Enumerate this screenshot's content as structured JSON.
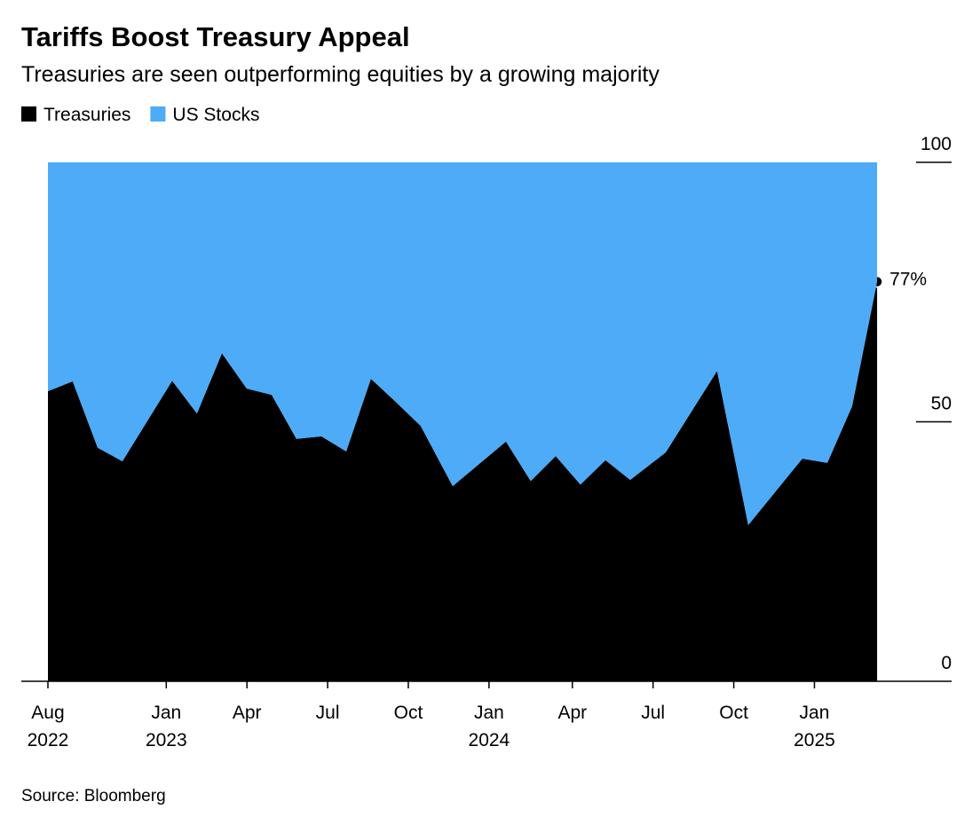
{
  "chart_data": {
    "type": "stacked_area",
    "title": "Tariffs Boost Treasury Appeal",
    "subtitle": "Treasuries are seen outperforming equities by a growing majority",
    "source": "Source: Bloomberg",
    "x": [
      0,
      0.92,
      1.85,
      2.77,
      4.62,
      5.54,
      6.47,
      7.39,
      8.32,
      9.24,
      10.17,
      11.09,
      12.01,
      12.94,
      13.86,
      15.05,
      17.03,
      17.95,
      18.88,
      19.8,
      20.73,
      21.65,
      22.97,
      24.88,
      26.04,
      28.05,
      28.98,
      29.9,
      30.83
    ],
    "series": [
      {
        "name": "Treasuries",
        "color": "#000000",
        "values": [
          55.9,
          57.8,
          45.0,
          42.4,
          57.9,
          51.6,
          63.2,
          56.4,
          55.2,
          46.7,
          47.2,
          44.3,
          58.3,
          53.8,
          49.2,
          37.6,
          46.2,
          38.6,
          43.4,
          37.9,
          42.6,
          38.8,
          44.1,
          59.8,
          30.1,
          42.9,
          42.1,
          53.0,
          77
        ],
        "value_labels": [
          null,
          null,
          null,
          null,
          null,
          null,
          null,
          null,
          null,
          null,
          null,
          null,
          null,
          null,
          null,
          null,
          null,
          null,
          null,
          null,
          null,
          null,
          null,
          null,
          null,
          null,
          null,
          null,
          "77%"
        ]
      },
      {
        "name": "US Stocks",
        "color": "#4dabf7",
        "values": [
          44.1,
          42.2,
          55.0,
          57.6,
          42.1,
          48.4,
          36.8,
          43.6,
          44.8,
          53.3,
          52.8,
          55.7,
          41.7,
          46.2,
          50.8,
          62.4,
          53.8,
          61.4,
          56.6,
          62.1,
          57.4,
          61.2,
          55.9,
          40.2,
          69.9,
          57.1,
          57.9,
          47.0,
          23
        ]
      }
    ],
    "xlim": [
      -0.99,
      33.6
    ],
    "xticks": [
      {
        "value": 0,
        "label": "Aug",
        "year": "2022"
      },
      {
        "value": 4.4,
        "label": "Jan",
        "year": "2023"
      },
      {
        "value": 7.4,
        "label": "Apr"
      },
      {
        "value": 10.4,
        "label": "Jul"
      },
      {
        "value": 13.4,
        "label": "Oct"
      },
      {
        "value": 16.4,
        "label": "Jan",
        "year": "2024"
      },
      {
        "value": 19.5,
        "label": "Apr"
      },
      {
        "value": 22.5,
        "label": "Jul"
      },
      {
        "value": 25.5,
        "label": "Oct"
      },
      {
        "value": 28.5,
        "label": "Jan",
        "year": "2025"
      }
    ],
    "ylim": [
      0,
      100
    ],
    "yticks": [
      0,
      50,
      100
    ],
    "legend": "top-left"
  }
}
